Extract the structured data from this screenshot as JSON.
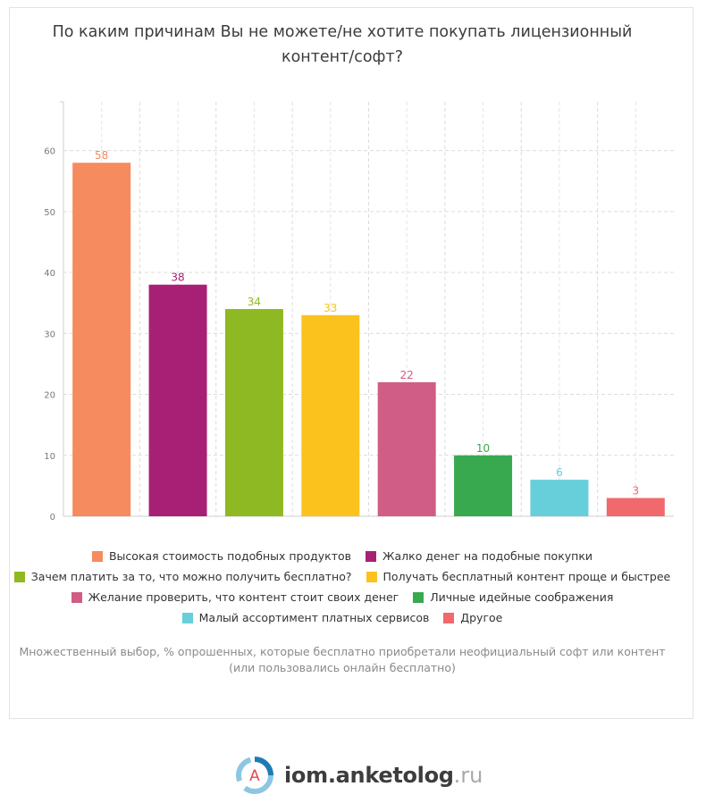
{
  "title": "По каким причинам Вы не можете/не хотите покупать лицензионный контент/софт?",
  "note": "Множественный выбор, % опрошенных, которые бесплатно приобретали неофициальный софт или контент (или пользовались онлайн бесплатно)",
  "footer": {
    "brand": "iom.anketolog",
    "tld": ".ru",
    "logo_letter": "A"
  },
  "chart_data": {
    "type": "bar",
    "categories": [
      "Высокая стоимость подобных продуктов",
      "Жалко денег на подобные покупки",
      "Зачем платить за то, что можно получить бесплатно?",
      "Получать бесплатный контент проще и быстрее",
      "Желание проверить, что контент стоит своих денег",
      "Личные идейные соображения",
      "Малый ассортимент платных сервисов",
      "Другое"
    ],
    "values": [
      58,
      38,
      34,
      33,
      22,
      10,
      6,
      3
    ],
    "colors": [
      "#f58b5e",
      "#a82076",
      "#8fb922",
      "#fbc21e",
      "#d05d85",
      "#38a94f",
      "#66cfda",
      "#f0696c"
    ],
    "ylim": [
      0,
      68
    ],
    "yticks": [
      0,
      10,
      20,
      30,
      40,
      50,
      60
    ],
    "grid": true,
    "legend_position": "bottom",
    "legend_rows": [
      [
        0,
        1
      ],
      [
        2,
        3
      ],
      [
        4,
        5
      ],
      [
        6,
        7
      ]
    ]
  }
}
